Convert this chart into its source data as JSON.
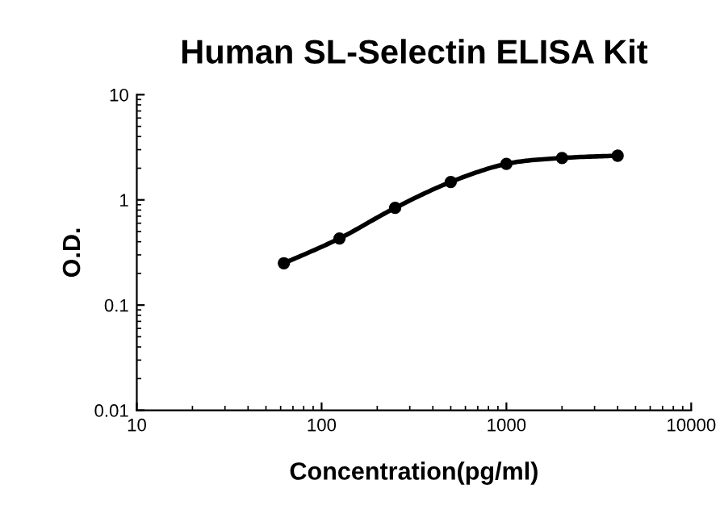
{
  "chart_data": {
    "type": "line",
    "title": "Human SL-Selectin ELISA Kit",
    "xlabel": "Concentration(pg/ml)",
    "ylabel": "O.D.",
    "x": [
      62.5,
      125,
      250,
      500,
      1000,
      2000,
      4000
    ],
    "series": [
      {
        "color": "#000000",
        "values": [
          0.25,
          0.43,
          0.84,
          1.48,
          2.2,
          2.5,
          2.63
        ]
      }
    ],
    "log": "xy",
    "xlim": [
      10,
      10000
    ],
    "xticks": [
      10,
      100,
      1000,
      10000
    ],
    "ylim": [
      0.01,
      10
    ],
    "yticks": [
      0.01,
      0.1,
      1,
      10
    ],
    "marker": "circle",
    "line_style": "solid",
    "grid": false,
    "legend": false
  }
}
